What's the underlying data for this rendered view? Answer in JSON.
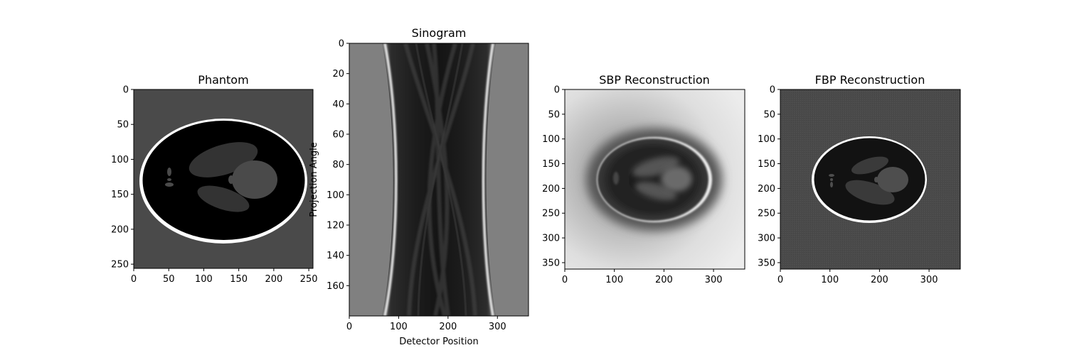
{
  "chart_data": [
    {
      "type": "image",
      "id": "phantom",
      "title": "Phantom",
      "xlabel": "",
      "ylabel": "",
      "xlim": [
        0,
        256
      ],
      "ylim": [
        256,
        0
      ],
      "xticks": [
        0,
        50,
        100,
        150,
        200,
        250
      ],
      "yticks": [
        0,
        50,
        100,
        150,
        200,
        250
      ],
      "colormap": "gray",
      "content": "Shepp-Logan phantom"
    },
    {
      "type": "image",
      "id": "sinogram",
      "title": "Sinogram",
      "xlabel": "Detector Position",
      "ylabel": "Projection Angle",
      "xlim": [
        0,
        363
      ],
      "ylim": [
        180,
        0
      ],
      "xticks": [
        0,
        100,
        200,
        300
      ],
      "yticks": [
        0,
        20,
        40,
        60,
        80,
        100,
        120,
        140,
        160
      ],
      "colormap": "gray",
      "content": "Radon transform of phantom"
    },
    {
      "type": "image",
      "id": "sbp",
      "title": "SBP Reconstruction",
      "xlabel": "",
      "ylabel": "",
      "xlim": [
        0,
        363
      ],
      "ylim": [
        363,
        0
      ],
      "xticks": [
        0,
        100,
        200,
        300
      ],
      "yticks": [
        0,
        50,
        100,
        150,
        200,
        250,
        300,
        350
      ],
      "colormap": "gray",
      "content": "Simple back-projection (blurred)"
    },
    {
      "type": "image",
      "id": "fbp",
      "title": "FBP Reconstruction",
      "xlabel": "",
      "ylabel": "",
      "xlim": [
        0,
        363
      ],
      "ylim": [
        363,
        0
      ],
      "xticks": [
        0,
        100,
        200,
        300
      ],
      "yticks": [
        0,
        50,
        100,
        150,
        200,
        250,
        300,
        350
      ],
      "colormap": "gray",
      "content": "Filtered back-projection"
    }
  ]
}
